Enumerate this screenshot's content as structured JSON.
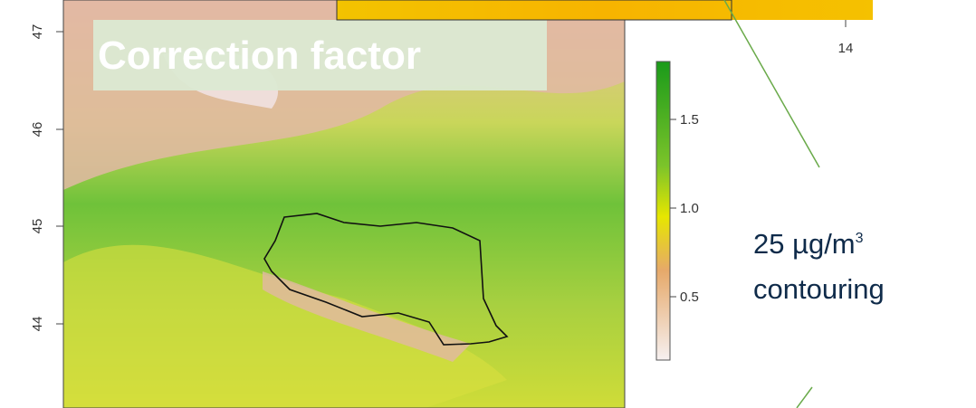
{
  "map": {
    "title": "Correction factor",
    "lat_ticks": [
      "47",
      "46",
      "45",
      "44"
    ],
    "colorbar_ticks": [
      "1.5",
      "1.0",
      "0.5"
    ],
    "inset_tick": "14",
    "annotation": {
      "text": "25 µg/m",
      "superscript": "3",
      "line2": "contouring"
    }
  }
}
